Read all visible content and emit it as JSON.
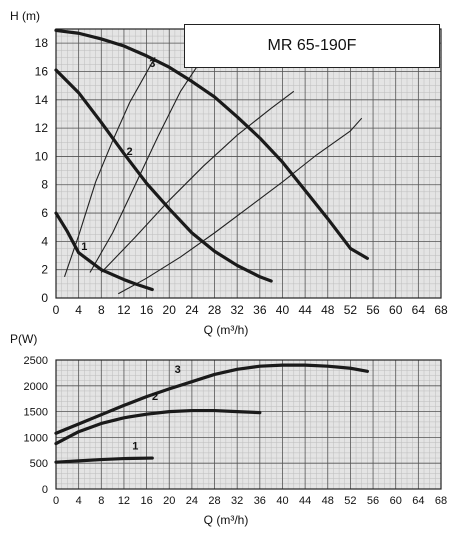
{
  "chart_data": [
    {
      "type": "line",
      "title": "MR 65-190F",
      "ylabel": "H (m)",
      "xlabel": "Q (m³/h)",
      "xlim": [
        0,
        68
      ],
      "ylim": [
        0,
        19
      ],
      "xticks": [
        "0",
        "4",
        "8",
        "12",
        "16",
        "20",
        "24",
        "28",
        "32",
        "36",
        "40",
        "44",
        "48",
        "52",
        "56",
        "60",
        "64",
        "68"
      ],
      "yticks": [
        "0",
        "2",
        "4",
        "6",
        "8",
        "10",
        "12",
        "14",
        "16",
        "18"
      ],
      "grid": true,
      "series": [
        {
          "name": "1",
          "x": [
            0,
            2,
            4,
            6,
            8,
            12,
            14,
            17
          ],
          "y": [
            6,
            4.7,
            3.2,
            2.6,
            2.0,
            1.3,
            1.0,
            0.6
          ]
        },
        {
          "name": "2",
          "x": [
            0,
            4,
            8,
            12,
            16,
            20,
            24,
            28,
            32,
            36,
            38
          ],
          "y": [
            16.1,
            14.5,
            12.4,
            10.2,
            8.1,
            6.3,
            4.6,
            3.3,
            2.3,
            1.5,
            1.2
          ]
        },
        {
          "name": "3",
          "x": [
            0,
            4,
            8,
            12,
            16,
            20,
            24,
            28,
            32,
            36,
            40,
            44,
            48,
            52,
            55
          ],
          "y": [
            18.9,
            18.7,
            18.3,
            17.8,
            17.1,
            16.3,
            15.3,
            14.2,
            12.8,
            11.3,
            9.6,
            7.6,
            5.6,
            3.5,
            2.8
          ]
        }
      ],
      "system_curves": [
        {
          "x": [
            1.5,
            4,
            7,
            10,
            13,
            17.5
          ],
          "y": [
            1.5,
            4.4,
            8.2,
            11.1,
            13.8,
            17
          ]
        },
        {
          "x": [
            6,
            10,
            14,
            18,
            22,
            26
          ],
          "y": [
            1.8,
            4.6,
            8.0,
            11.4,
            14.6,
            17
          ]
        },
        {
          "x": [
            8,
            14,
            20,
            26,
            32,
            38,
            42
          ],
          "y": [
            1.8,
            4.3,
            6.9,
            9.3,
            11.5,
            13.4,
            14.6
          ]
        },
        {
          "x": [
            11,
            16,
            22,
            28,
            34,
            40,
            46,
            52,
            54
          ],
          "y": [
            0.3,
            1.4,
            2.9,
            4.6,
            6.4,
            8.2,
            10.1,
            11.8,
            12.7
          ]
        }
      ],
      "curve_labels": [
        {
          "text": "1",
          "x": 5,
          "y": 3.4
        },
        {
          "text": "2",
          "x": 13,
          "y": 10.1
        },
        {
          "text": "3",
          "x": 17,
          "y": 16.3
        }
      ]
    },
    {
      "type": "line",
      "title": "",
      "ylabel": "P(W)",
      "xlabel": "Q (m³/h)",
      "xlim": [
        0,
        68
      ],
      "ylim": [
        0,
        2500
      ],
      "xticks": [
        "0",
        "4",
        "8",
        "12",
        "16",
        "20",
        "24",
        "28",
        "32",
        "36",
        "40",
        "44",
        "48",
        "52",
        "56",
        "60",
        "64",
        "68"
      ],
      "yticks": [
        "0",
        "500",
        "1000",
        "1500",
        "2000",
        "2500"
      ],
      "grid": true,
      "series": [
        {
          "name": "1",
          "x": [
            0,
            4,
            8,
            12,
            17
          ],
          "y": [
            520,
            545,
            570,
            590,
            600
          ]
        },
        {
          "name": "2",
          "x": [
            0,
            4,
            8,
            12,
            16,
            20,
            24,
            28,
            32,
            36
          ],
          "y": [
            880,
            1110,
            1270,
            1380,
            1450,
            1500,
            1520,
            1520,
            1500,
            1480
          ]
        },
        {
          "name": "3",
          "x": [
            0,
            4,
            8,
            12,
            16,
            20,
            24,
            28,
            32,
            36,
            40,
            44,
            48,
            52,
            55
          ],
          "y": [
            1080,
            1260,
            1440,
            1620,
            1790,
            1940,
            2080,
            2220,
            2320,
            2380,
            2400,
            2400,
            2380,
            2340,
            2280
          ]
        }
      ],
      "curve_labels": [
        {
          "text": "1",
          "x": 14,
          "y": 770
        },
        {
          "text": "2",
          "x": 17.5,
          "y": 1720
        },
        {
          "text": "3",
          "x": 21.5,
          "y": 2250
        }
      ]
    }
  ]
}
